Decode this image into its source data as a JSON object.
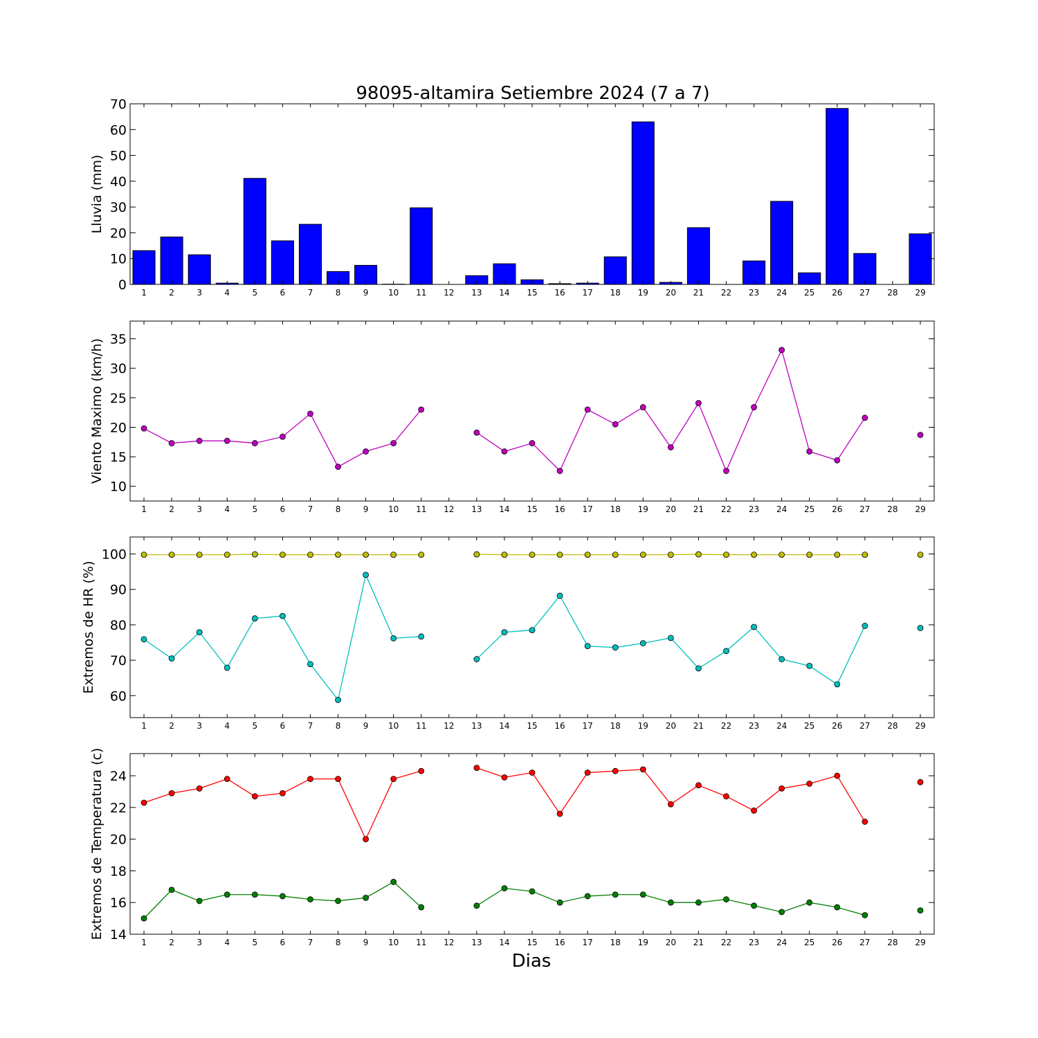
{
  "figure": {
    "title": "98095-altamira Setiembre 2024  (7 a 7)",
    "xlabel": "Dias"
  },
  "chart_data": [
    {
      "type": "bar",
      "ylabel": "Lluvia (mm)",
      "ylim": [
        0,
        70
      ],
      "yticks": [
        0,
        10,
        20,
        30,
        40,
        50,
        60,
        70
      ],
      "xlim": [
        0.5,
        29.5
      ],
      "x": [
        1,
        2,
        3,
        4,
        5,
        6,
        7,
        8,
        9,
        10,
        11,
        12,
        13,
        14,
        15,
        16,
        17,
        18,
        19,
        20,
        21,
        22,
        23,
        24,
        25,
        26,
        27,
        28,
        29
      ],
      "series": [
        {
          "color": "#0000ff",
          "values": [
            13.1,
            18.4,
            11.5,
            0.5,
            41.1,
            16.9,
            23.3,
            5.0,
            7.4,
            0.1,
            29.7,
            0,
            3.4,
            8.0,
            1.8,
            0.3,
            0.5,
            10.7,
            63.0,
            0.8,
            22.0,
            0,
            9.1,
            32.2,
            4.5,
            68.2,
            12.0,
            0,
            19.6
          ]
        }
      ]
    },
    {
      "type": "line",
      "ylabel": "Viento Maximo (km/h)",
      "ylim": [
        7.5,
        38
      ],
      "yticks": [
        10,
        15,
        20,
        25,
        30,
        35
      ],
      "xlim": [
        0.5,
        29.5
      ],
      "x": [
        1,
        2,
        3,
        4,
        5,
        6,
        7,
        8,
        9,
        10,
        11,
        12,
        13,
        14,
        15,
        16,
        17,
        18,
        19,
        20,
        21,
        22,
        23,
        24,
        25,
        26,
        27,
        28,
        29
      ],
      "series": [
        {
          "color": "#bf00bf",
          "values": [
            19.8,
            17.3,
            17.7,
            17.7,
            17.3,
            18.4,
            22.3,
            13.3,
            15.9,
            17.3,
            23.0,
            null,
            19.1,
            15.9,
            17.3,
            12.6,
            23.0,
            20.5,
            23.4,
            16.6,
            24.1,
            12.6,
            23.4,
            33.1,
            15.9,
            14.4,
            21.6,
            null,
            18.7
          ]
        }
      ]
    },
    {
      "type": "line",
      "ylabel": "Extremos de HR (%)",
      "ylim": [
        53.8,
        104.8
      ],
      "yticks": [
        60,
        70,
        80,
        90,
        100
      ],
      "xlim": [
        0.5,
        29.5
      ],
      "x": [
        1,
        2,
        3,
        4,
        5,
        6,
        7,
        8,
        9,
        10,
        11,
        12,
        13,
        14,
        15,
        16,
        17,
        18,
        19,
        20,
        21,
        22,
        23,
        24,
        25,
        26,
        27,
        28,
        29
      ],
      "series": [
        {
          "color": "#bfbf00",
          "values": [
            99.8,
            99.8,
            99.8,
            99.8,
            99.9,
            99.8,
            99.8,
            99.8,
            99.8,
            99.8,
            99.8,
            null,
            99.9,
            99.8,
            99.8,
            99.8,
            99.8,
            99.8,
            99.8,
            99.8,
            99.9,
            99.8,
            99.8,
            99.8,
            99.8,
            99.8,
            99.8,
            null,
            99.8
          ]
        },
        {
          "color": "#00bfbf",
          "values": [
            75.9,
            70.5,
            77.9,
            67.9,
            81.8,
            82.5,
            68.9,
            58.8,
            94.1,
            76.2,
            76.7,
            null,
            70.3,
            77.9,
            78.5,
            88.2,
            74.0,
            73.6,
            74.8,
            76.3,
            67.7,
            72.6,
            79.4,
            70.3,
            68.4,
            63.2,
            79.7,
            null,
            79.1
          ]
        }
      ]
    },
    {
      "type": "line",
      "ylabel": "Extremos de Temperatura (c)",
      "ylim": [
        14,
        25.4
      ],
      "yticks": [
        14,
        16,
        18,
        20,
        22,
        24
      ],
      "xlim": [
        0.5,
        29.5
      ],
      "x": [
        1,
        2,
        3,
        4,
        5,
        6,
        7,
        8,
        9,
        10,
        11,
        12,
        13,
        14,
        15,
        16,
        17,
        18,
        19,
        20,
        21,
        22,
        23,
        24,
        25,
        26,
        27,
        28,
        29
      ],
      "series": [
        {
          "color": "#ff0000",
          "values": [
            22.3,
            22.9,
            23.2,
            23.8,
            22.7,
            22.9,
            23.8,
            23.8,
            20.0,
            23.8,
            24.3,
            null,
            24.5,
            23.9,
            24.2,
            21.6,
            24.2,
            24.3,
            24.4,
            22.2,
            23.4,
            22.7,
            21.8,
            23.2,
            23.5,
            24.0,
            21.1,
            null,
            23.6
          ]
        },
        {
          "color": "#008000",
          "values": [
            15.0,
            16.8,
            16.1,
            16.5,
            16.5,
            16.4,
            16.2,
            16.1,
            16.3,
            17.3,
            15.7,
            null,
            15.8,
            16.9,
            16.7,
            16.0,
            16.4,
            16.5,
            16.5,
            16.0,
            16.0,
            16.2,
            15.8,
            15.4,
            16.0,
            15.7,
            15.2,
            null,
            15.5
          ]
        }
      ]
    }
  ]
}
